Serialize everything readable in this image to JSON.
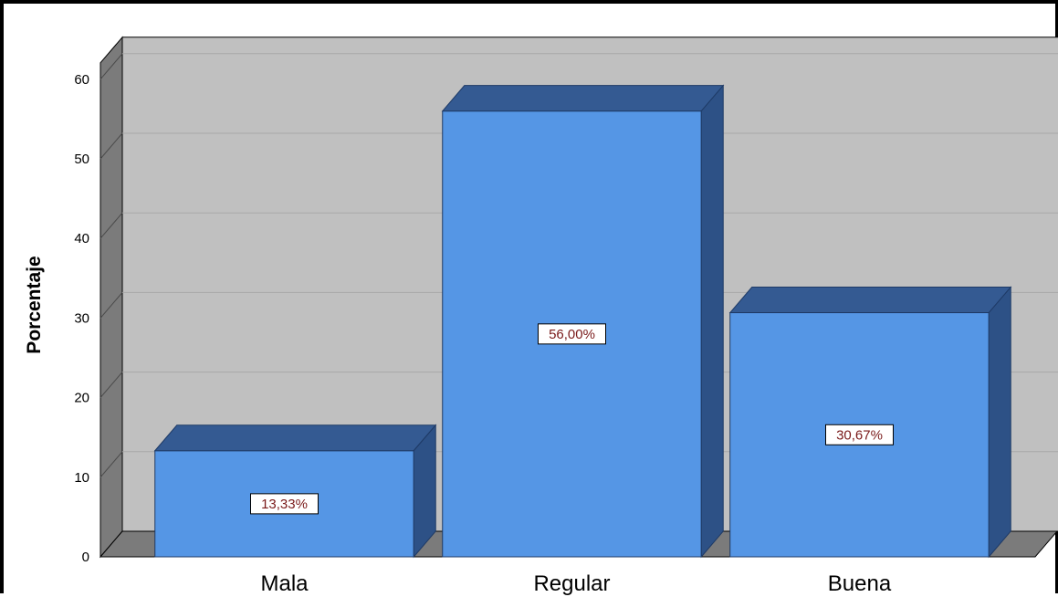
{
  "chart_data": {
    "type": "bar",
    "style": "3d",
    "categories": [
      "Mala",
      "Regular",
      "Buena"
    ],
    "values": [
      13.33,
      56.0,
      30.67
    ],
    "data_labels": [
      "13,33%",
      "56,00%",
      "30,67%"
    ],
    "ylabel": "Porcentaje",
    "xlabel": "",
    "ylim": [
      0,
      60
    ],
    "yticks": [
      "0",
      "10",
      "20",
      "30",
      "40",
      "50",
      "60"
    ],
    "grid": true,
    "colors": {
      "bar_front": "#5596e5",
      "bar_top": "#345a92",
      "bar_side": "#2d5186",
      "wall": "#c0c0c0",
      "side_wall": "#7b7b7b",
      "floor": "#7b7b7b",
      "gridline": "#a8a8a8",
      "label_text": "#7a1a1a"
    }
  }
}
